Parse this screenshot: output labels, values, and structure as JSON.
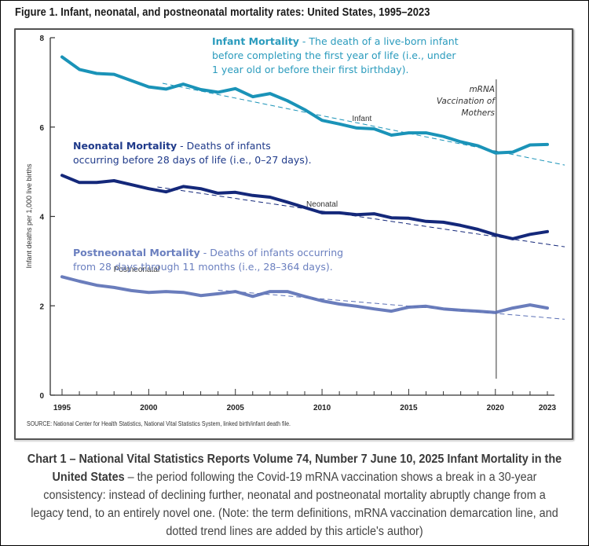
{
  "figure": {
    "title": "Figure 1. Infant, neonatal, and postneonatal mortality rates: United States, 1995–2023",
    "source": "SOURCE: National Center for Health Statistics, National Vital Statistics System, linked birth/infant death file."
  },
  "annotations": {
    "infant": {
      "term": "Infant Mortality",
      "line1": " -  The death of a live-born infant",
      "line2": "before completing the first year of life (i.e., under",
      "line3": "1 year old or before their first birthday)."
    },
    "neonatal": {
      "term": "Neonatal Mortality",
      "line1": " -  Deaths of infants",
      "line2": "occurring before 28 days of life (i.e., 0–27 days)."
    },
    "postneonatal": {
      "term": "Postneonatal Mortality",
      "line1": " -  Deaths of infants occurring",
      "line2": "from 28 days through 11 months (i.e., 28–364 days)."
    },
    "vaccination": {
      "line1": "mRNA",
      "line2": "Vaccination of",
      "line3": "Mothers",
      "year": 2020.05
    }
  },
  "caption": {
    "bold": "Chart 1 – National Vital Statistics Reports Volume 74, Number 7 June 10, 2025 Infant Mortality in the United States",
    "text": " – the period following the Covid-19 mRNA vaccination shows a break in a 30-year consistency: instead of declining further, neonatal and postneonatal mortality abruptly change from a legacy tend, to an entirely novel one. (Note: the term definitions, mRNA vaccination demarcation line, and dotted trend lines are added by this article's author)"
  },
  "colors": {
    "infant": "#1a93b8",
    "neonatal": "#14287a",
    "postneonatal": "#5a6fb5",
    "axis": "#333333"
  },
  "chart_data": {
    "type": "line",
    "title": "Figure 1. Infant, neonatal, and postneonatal mortality rates: United States, 1995–2023",
    "xlabel": "",
    "ylabel": "Infant deaths per 1,000 live births",
    "xlim": [
      1995,
      2023
    ],
    "ylim": [
      0,
      8
    ],
    "grid": false,
    "x_tick_labels": [
      "1995",
      "2000",
      "2005",
      "2010",
      "2015",
      "2020",
      "2023"
    ],
    "x_ticks": [
      1995,
      2000,
      2005,
      2010,
      2015,
      2020,
      2023
    ],
    "y_ticks": [
      0,
      2,
      4,
      6,
      8
    ],
    "y_tick_labels": [
      "0",
      "2",
      "4",
      "6",
      "8"
    ],
    "x": [
      1995,
      1996,
      1997,
      1998,
      1999,
      2000,
      2001,
      2002,
      2003,
      2004,
      2005,
      2006,
      2007,
      2008,
      2009,
      2010,
      2011,
      2012,
      2013,
      2014,
      2015,
      2016,
      2017,
      2018,
      2019,
      2020,
      2021,
      2022,
      2023
    ],
    "series": [
      {
        "name": "Infant",
        "values": [
          7.57,
          7.29,
          7.2,
          7.18,
          7.04,
          6.9,
          6.85,
          6.96,
          6.84,
          6.78,
          6.86,
          6.68,
          6.75,
          6.59,
          6.39,
          6.15,
          6.07,
          5.98,
          5.96,
          5.82,
          5.87,
          5.87,
          5.79,
          5.67,
          5.58,
          5.42,
          5.44,
          5.6,
          5.61
        ],
        "label_position": [
          2012.3,
          6.14
        ]
      },
      {
        "name": "Neonatal",
        "values": [
          4.92,
          4.76,
          4.76,
          4.8,
          4.71,
          4.62,
          4.55,
          4.67,
          4.62,
          4.52,
          4.54,
          4.47,
          4.43,
          4.32,
          4.2,
          4.08,
          4.08,
          4.04,
          4.06,
          3.97,
          3.96,
          3.89,
          3.87,
          3.8,
          3.71,
          3.59,
          3.5,
          3.6,
          3.66
        ],
        "label_position": [
          2010.0,
          4.22
        ]
      },
      {
        "name": "Postneonatal",
        "values": [
          2.65,
          2.55,
          2.46,
          2.41,
          2.34,
          2.3,
          2.32,
          2.3,
          2.23,
          2.27,
          2.32,
          2.21,
          2.32,
          2.32,
          2.21,
          2.11,
          2.04,
          1.99,
          1.93,
          1.88,
          1.97,
          1.99,
          1.93,
          1.9,
          1.88,
          1.85,
          1.95,
          2.02,
          1.95
        ],
        "label_position": [
          1999.3,
          2.76
        ]
      }
    ],
    "trend_lines": [
      {
        "name": "Infant trend",
        "from": [
          2000.8,
          6.98
        ],
        "to": [
          2024.0,
          5.15
        ]
      },
      {
        "name": "Neonatal trend",
        "from": [
          2000.5,
          4.66
        ],
        "to": [
          2024.0,
          3.32
        ]
      },
      {
        "name": "Postneonatal trend",
        "from": [
          2004.0,
          2.35
        ],
        "to": [
          2024.0,
          1.7
        ]
      }
    ],
    "annotations": [
      "mRNA Vaccination of Mothers (vertical line at 2020)"
    ]
  }
}
